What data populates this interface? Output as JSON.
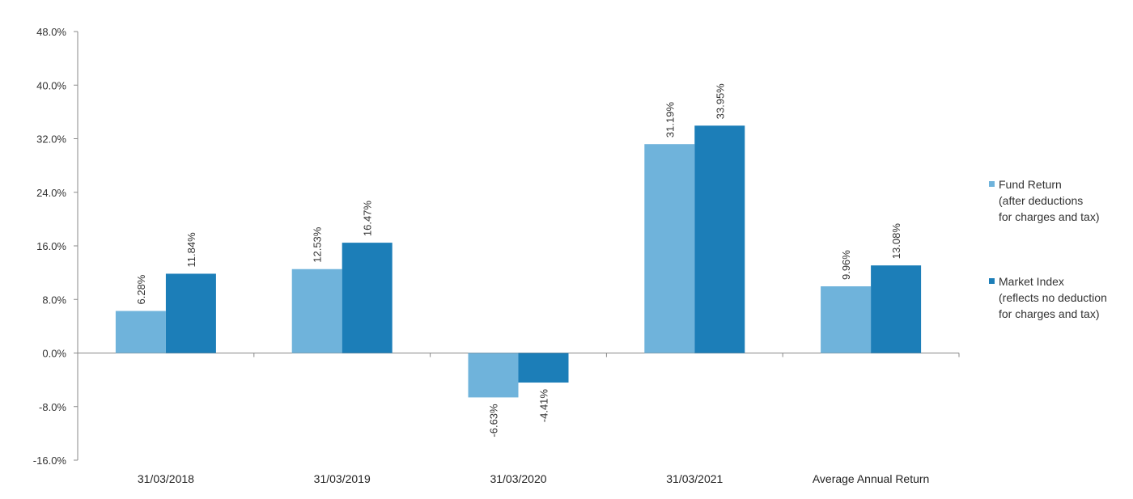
{
  "chart_data": {
    "type": "bar",
    "categories": [
      "31/03/2018",
      "31/03/2019",
      "31/03/2020",
      "31/03/2021",
      "Average Annual Return"
    ],
    "series": [
      {
        "name": "Fund Return (after deductions for charges and tax)",
        "values": [
          6.28,
          12.53,
          -6.63,
          31.19,
          9.96
        ],
        "labels": [
          "6.28%",
          "12.53%",
          "-6.63%",
          "31.19%",
          "9.96%"
        ],
        "color": "#6FB3DB"
      },
      {
        "name": "Market Index (reflects no deduction for charges and tax)",
        "values": [
          11.84,
          16.47,
          -4.41,
          33.95,
          13.08
        ],
        "labels": [
          "11.84%",
          "16.47%",
          "-4.41%",
          "33.95%",
          "13.08%"
        ],
        "color": "#1C7EB8"
      }
    ],
    "ylim": [
      -16,
      48
    ],
    "yticks": [
      "48.0%",
      "40.0%",
      "32.0%",
      "24.0%",
      "16.0%",
      "8.0%",
      "0.0%",
      "-8.0%",
      "-16.0%"
    ],
    "ytick_values": [
      48,
      40,
      32,
      24,
      16,
      8,
      0,
      -8,
      -16
    ],
    "legend_position": "right",
    "grid": false
  },
  "legend": [
    {
      "lines": [
        "Fund Return",
        "(after deductions",
        "for charges and tax)"
      ]
    },
    {
      "lines": [
        "Market Index",
        "(reflects no deduction",
        "for charges and tax)"
      ]
    }
  ]
}
